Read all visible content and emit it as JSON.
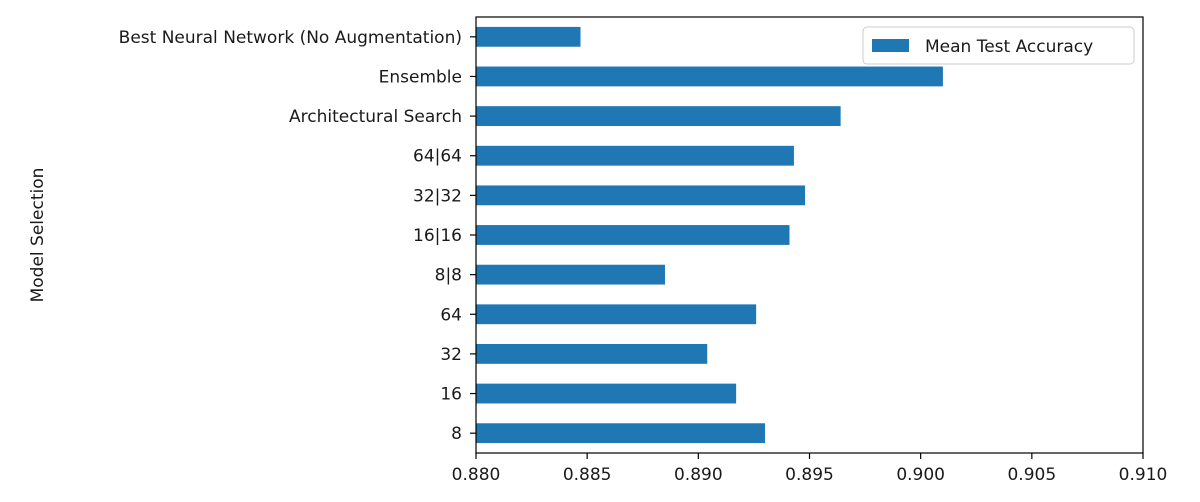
{
  "chart_data": {
    "type": "bar",
    "orientation": "horizontal",
    "title": "",
    "xlabel": "",
    "ylabel": "Model Selection",
    "xlim": [
      0.88,
      0.91
    ],
    "xticks": [
      "0.880",
      "0.885",
      "0.890",
      "0.895",
      "0.900",
      "0.905",
      "0.910"
    ],
    "categories": [
      "8",
      "16",
      "32",
      "64",
      "8|8",
      "16|16",
      "32|32",
      "64|64",
      "Architectural Search",
      "Ensemble",
      "Best Neural Network (No Augmentation)"
    ],
    "series": [
      {
        "name": "Mean Test Accuracy",
        "color": "#1f77b4",
        "values": [
          0.893,
          0.8917,
          0.8904,
          0.8926,
          0.8885,
          0.8941,
          0.8948,
          0.8943,
          0.8964,
          0.901,
          0.8847
        ]
      }
    ],
    "legend": {
      "position": "top-right"
    },
    "grid": false
  }
}
